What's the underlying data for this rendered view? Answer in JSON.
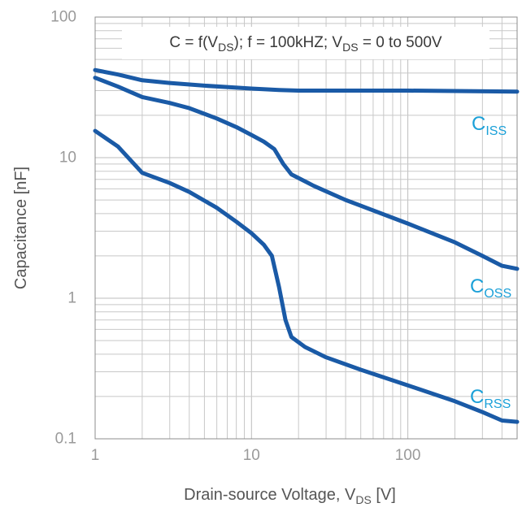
{
  "chart_data": {
    "type": "line",
    "title": {
      "c": "C = f(V",
      "c_sub": "DS",
      "f": "); f = 100kHZ; V",
      "v_sub": "DS",
      "range": " = 0 to 500V"
    },
    "xlabel": {
      "main": "Drain-source Voltage, V",
      "sub": "DS",
      "unit": " [V]"
    },
    "ylabel": "Capacitance [nF]",
    "x_scale": "log",
    "y_scale": "log",
    "xlim": [
      1,
      500
    ],
    "ylim": [
      0.1,
      100
    ],
    "x_ticks": [
      {
        "value": 1,
        "label": "1"
      },
      {
        "value": 10,
        "label": "10"
      },
      {
        "value": 100,
        "label": "100"
      }
    ],
    "y_ticks": [
      {
        "value": 0.1,
        "label": "0.1"
      },
      {
        "value": 1,
        "label": "1"
      },
      {
        "value": 10,
        "label": "10"
      },
      {
        "value": 100,
        "label": "100"
      }
    ],
    "grid": true,
    "line_color": "#1a5aa6",
    "label_color": "#1aa0d8",
    "series": [
      {
        "name": "C",
        "name_sub": "ISS",
        "points": [
          [
            1,
            42
          ],
          [
            1.4,
            39
          ],
          [
            2,
            35.5
          ],
          [
            3,
            34
          ],
          [
            5,
            32.5
          ],
          [
            10,
            31
          ],
          [
            15,
            30.3
          ],
          [
            20,
            30
          ],
          [
            50,
            30
          ],
          [
            100,
            30
          ],
          [
            200,
            29.8
          ],
          [
            500,
            29.5
          ]
        ]
      },
      {
        "name": "C",
        "name_sub": "OSS",
        "points": [
          [
            1,
            37
          ],
          [
            1.4,
            32
          ],
          [
            2,
            27
          ],
          [
            3,
            24.5
          ],
          [
            4,
            22.5
          ],
          [
            6,
            19
          ],
          [
            8,
            16.5
          ],
          [
            10,
            14.5
          ],
          [
            12,
            13
          ],
          [
            14,
            11.5
          ],
          [
            16,
            9
          ],
          [
            18,
            7.6
          ],
          [
            25,
            6.3
          ],
          [
            40,
            5
          ],
          [
            100,
            3.4
          ],
          [
            200,
            2.5
          ],
          [
            300,
            2
          ],
          [
            400,
            1.7
          ],
          [
            500,
            1.62
          ]
        ]
      },
      {
        "name": "C",
        "name_sub": "RSS",
        "points": [
          [
            1,
            15.5
          ],
          [
            1.4,
            12
          ],
          [
            2,
            7.8
          ],
          [
            3,
            6.6
          ],
          [
            4,
            5.7
          ],
          [
            6,
            4.4
          ],
          [
            8,
            3.5
          ],
          [
            10,
            2.9
          ],
          [
            12,
            2.4
          ],
          [
            13.5,
            2
          ],
          [
            15,
            1.2
          ],
          [
            16.5,
            0.7
          ],
          [
            18,
            0.53
          ],
          [
            22,
            0.45
          ],
          [
            30,
            0.38
          ],
          [
            50,
            0.31
          ],
          [
            100,
            0.24
          ],
          [
            200,
            0.185
          ],
          [
            300,
            0.155
          ],
          [
            400,
            0.135
          ],
          [
            500,
            0.132
          ]
        ]
      }
    ]
  }
}
